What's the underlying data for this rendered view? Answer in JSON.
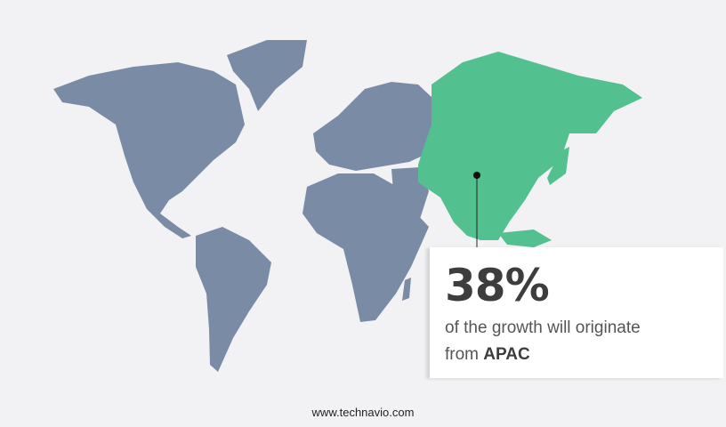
{
  "colors": {
    "land": "#7a8ca5",
    "highlight": "#52c08f",
    "background": "#f2f2f4"
  },
  "highlight_region": "APAC",
  "callout": {
    "value": "38%",
    "text": "of the growth will originate",
    "text_line2_prefix": "from",
    "region": "APAC"
  },
  "footer": {
    "url": "www.technavio.com"
  }
}
